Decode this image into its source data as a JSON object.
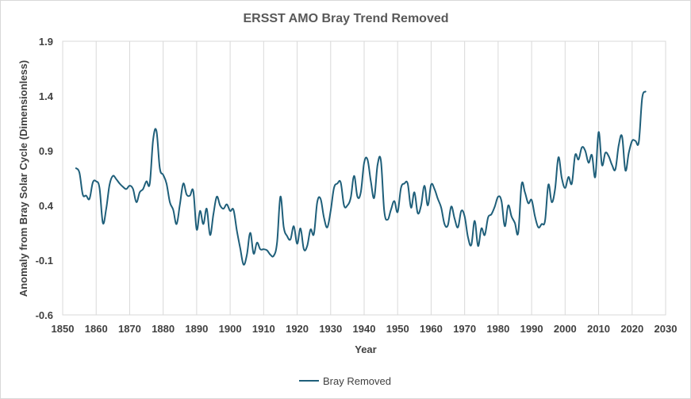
{
  "chart_data": {
    "type": "line",
    "title": "ERSST AMO Bray Trend Removed",
    "xlabel": "Year",
    "ylabel": "Anomaly from Bray Solar Cycle (Dimensionless)",
    "xlim": [
      1850,
      2030
    ],
    "ylim": [
      -0.6,
      1.9
    ],
    "x_ticks": [
      "1850",
      "1860",
      "1870",
      "1880",
      "1890",
      "1900",
      "1910",
      "1920",
      "1930",
      "1940",
      "1950",
      "1960",
      "1970",
      "1980",
      "1990",
      "2000",
      "2010",
      "2020",
      "2030"
    ],
    "y_ticks": [
      "1.9",
      "1.4",
      "0.9",
      "0.4",
      "-0.1",
      "-0.6"
    ],
    "grid": "vertical",
    "legend_position": "bottom",
    "line_color": "#1f5f7a",
    "series": [
      {
        "name": "Bray Removed",
        "points": [
          [
            1854,
            0.74
          ],
          [
            1855,
            0.7
          ],
          [
            1856,
            0.5
          ],
          [
            1857,
            0.49
          ],
          [
            1858,
            0.46
          ],
          [
            1859,
            0.61
          ],
          [
            1860,
            0.62
          ],
          [
            1861,
            0.56
          ],
          [
            1862,
            0.24
          ],
          [
            1863,
            0.37
          ],
          [
            1864,
            0.59
          ],
          [
            1865,
            0.67
          ],
          [
            1866,
            0.64
          ],
          [
            1867,
            0.6
          ],
          [
            1868,
            0.57
          ],
          [
            1869,
            0.55
          ],
          [
            1870,
            0.58
          ],
          [
            1871,
            0.55
          ],
          [
            1872,
            0.43
          ],
          [
            1873,
            0.52
          ],
          [
            1874,
            0.55
          ],
          [
            1875,
            0.62
          ],
          [
            1876,
            0.6
          ],
          [
            1877,
            1.0
          ],
          [
            1878,
            1.08
          ],
          [
            1879,
            0.74
          ],
          [
            1880,
            0.68
          ],
          [
            1881,
            0.6
          ],
          [
            1882,
            0.43
          ],
          [
            1883,
            0.36
          ],
          [
            1884,
            0.23
          ],
          [
            1885,
            0.41
          ],
          [
            1886,
            0.6
          ],
          [
            1887,
            0.5
          ],
          [
            1888,
            0.49
          ],
          [
            1889,
            0.53
          ],
          [
            1890,
            0.18
          ],
          [
            1891,
            0.35
          ],
          [
            1892,
            0.23
          ],
          [
            1893,
            0.37
          ],
          [
            1894,
            0.13
          ],
          [
            1895,
            0.32
          ],
          [
            1896,
            0.48
          ],
          [
            1897,
            0.4
          ],
          [
            1898,
            0.37
          ],
          [
            1899,
            0.41
          ],
          [
            1900,
            0.35
          ],
          [
            1901,
            0.36
          ],
          [
            1902,
            0.17
          ],
          [
            1903,
            0.01
          ],
          [
            1904,
            -0.14
          ],
          [
            1905,
            -0.05
          ],
          [
            1906,
            0.15
          ],
          [
            1907,
            -0.04
          ],
          [
            1908,
            0.06
          ],
          [
            1909,
            0.0
          ],
          [
            1910,
            0.0
          ],
          [
            1911,
            -0.01
          ],
          [
            1912,
            -0.05
          ],
          [
            1913,
            -0.06
          ],
          [
            1914,
            0.06
          ],
          [
            1915,
            0.48
          ],
          [
            1916,
            0.2
          ],
          [
            1917,
            0.12
          ],
          [
            1918,
            0.09
          ],
          [
            1919,
            0.21
          ],
          [
            1920,
            0.05
          ],
          [
            1921,
            0.19
          ],
          [
            1922,
            0.0
          ],
          [
            1923,
            0.03
          ],
          [
            1924,
            0.18
          ],
          [
            1925,
            0.14
          ],
          [
            1926,
            0.43
          ],
          [
            1927,
            0.46
          ],
          [
            1928,
            0.29
          ],
          [
            1929,
            0.2
          ],
          [
            1930,
            0.35
          ],
          [
            1931,
            0.56
          ],
          [
            1932,
            0.6
          ],
          [
            1933,
            0.61
          ],
          [
            1934,
            0.4
          ],
          [
            1935,
            0.4
          ],
          [
            1936,
            0.47
          ],
          [
            1937,
            0.67
          ],
          [
            1938,
            0.48
          ],
          [
            1939,
            0.52
          ],
          [
            1940,
            0.79
          ],
          [
            1941,
            0.82
          ],
          [
            1942,
            0.62
          ],
          [
            1943,
            0.47
          ],
          [
            1944,
            0.77
          ],
          [
            1945,
            0.81
          ],
          [
            1946,
            0.35
          ],
          [
            1947,
            0.27
          ],
          [
            1948,
            0.36
          ],
          [
            1949,
            0.44
          ],
          [
            1950,
            0.34
          ],
          [
            1951,
            0.56
          ],
          [
            1952,
            0.6
          ],
          [
            1953,
            0.6
          ],
          [
            1954,
            0.38
          ],
          [
            1955,
            0.52
          ],
          [
            1956,
            0.33
          ],
          [
            1957,
            0.4
          ],
          [
            1958,
            0.58
          ],
          [
            1959,
            0.4
          ],
          [
            1960,
            0.59
          ],
          [
            1961,
            0.55
          ],
          [
            1962,
            0.46
          ],
          [
            1963,
            0.38
          ],
          [
            1964,
            0.23
          ],
          [
            1965,
            0.22
          ],
          [
            1966,
            0.39
          ],
          [
            1967,
            0.28
          ],
          [
            1968,
            0.2
          ],
          [
            1969,
            0.35
          ],
          [
            1970,
            0.3
          ],
          [
            1971,
            0.11
          ],
          [
            1972,
            0.04
          ],
          [
            1973,
            0.26
          ],
          [
            1974,
            0.03
          ],
          [
            1975,
            0.19
          ],
          [
            1976,
            0.13
          ],
          [
            1977,
            0.29
          ],
          [
            1978,
            0.32
          ],
          [
            1979,
            0.39
          ],
          [
            1980,
            0.48
          ],
          [
            1981,
            0.44
          ],
          [
            1982,
            0.21
          ],
          [
            1983,
            0.4
          ],
          [
            1984,
            0.3
          ],
          [
            1985,
            0.24
          ],
          [
            1986,
            0.15
          ],
          [
            1987,
            0.59
          ],
          [
            1988,
            0.52
          ],
          [
            1989,
            0.42
          ],
          [
            1990,
            0.45
          ],
          [
            1991,
            0.3
          ],
          [
            1992,
            0.2
          ],
          [
            1993,
            0.23
          ],
          [
            1994,
            0.26
          ],
          [
            1995,
            0.59
          ],
          [
            1996,
            0.43
          ],
          [
            1997,
            0.55
          ],
          [
            1998,
            0.84
          ],
          [
            1999,
            0.65
          ],
          [
            2000,
            0.56
          ],
          [
            2001,
            0.66
          ],
          [
            2002,
            0.6
          ],
          [
            2003,
            0.86
          ],
          [
            2004,
            0.82
          ],
          [
            2005,
            0.93
          ],
          [
            2006,
            0.9
          ],
          [
            2007,
            0.79
          ],
          [
            2008,
            0.86
          ],
          [
            2009,
            0.66
          ],
          [
            2010,
            1.07
          ],
          [
            2011,
            0.77
          ],
          [
            2012,
            0.88
          ],
          [
            2013,
            0.85
          ],
          [
            2014,
            0.77
          ],
          [
            2015,
            0.73
          ],
          [
            2016,
            0.95
          ],
          [
            2017,
            1.03
          ],
          [
            2018,
            0.72
          ],
          [
            2019,
            0.88
          ],
          [
            2020,
            0.99
          ],
          [
            2021,
            0.99
          ],
          [
            2022,
            0.98
          ],
          [
            2023,
            1.38
          ],
          [
            2024,
            1.44
          ]
        ]
      }
    ]
  }
}
